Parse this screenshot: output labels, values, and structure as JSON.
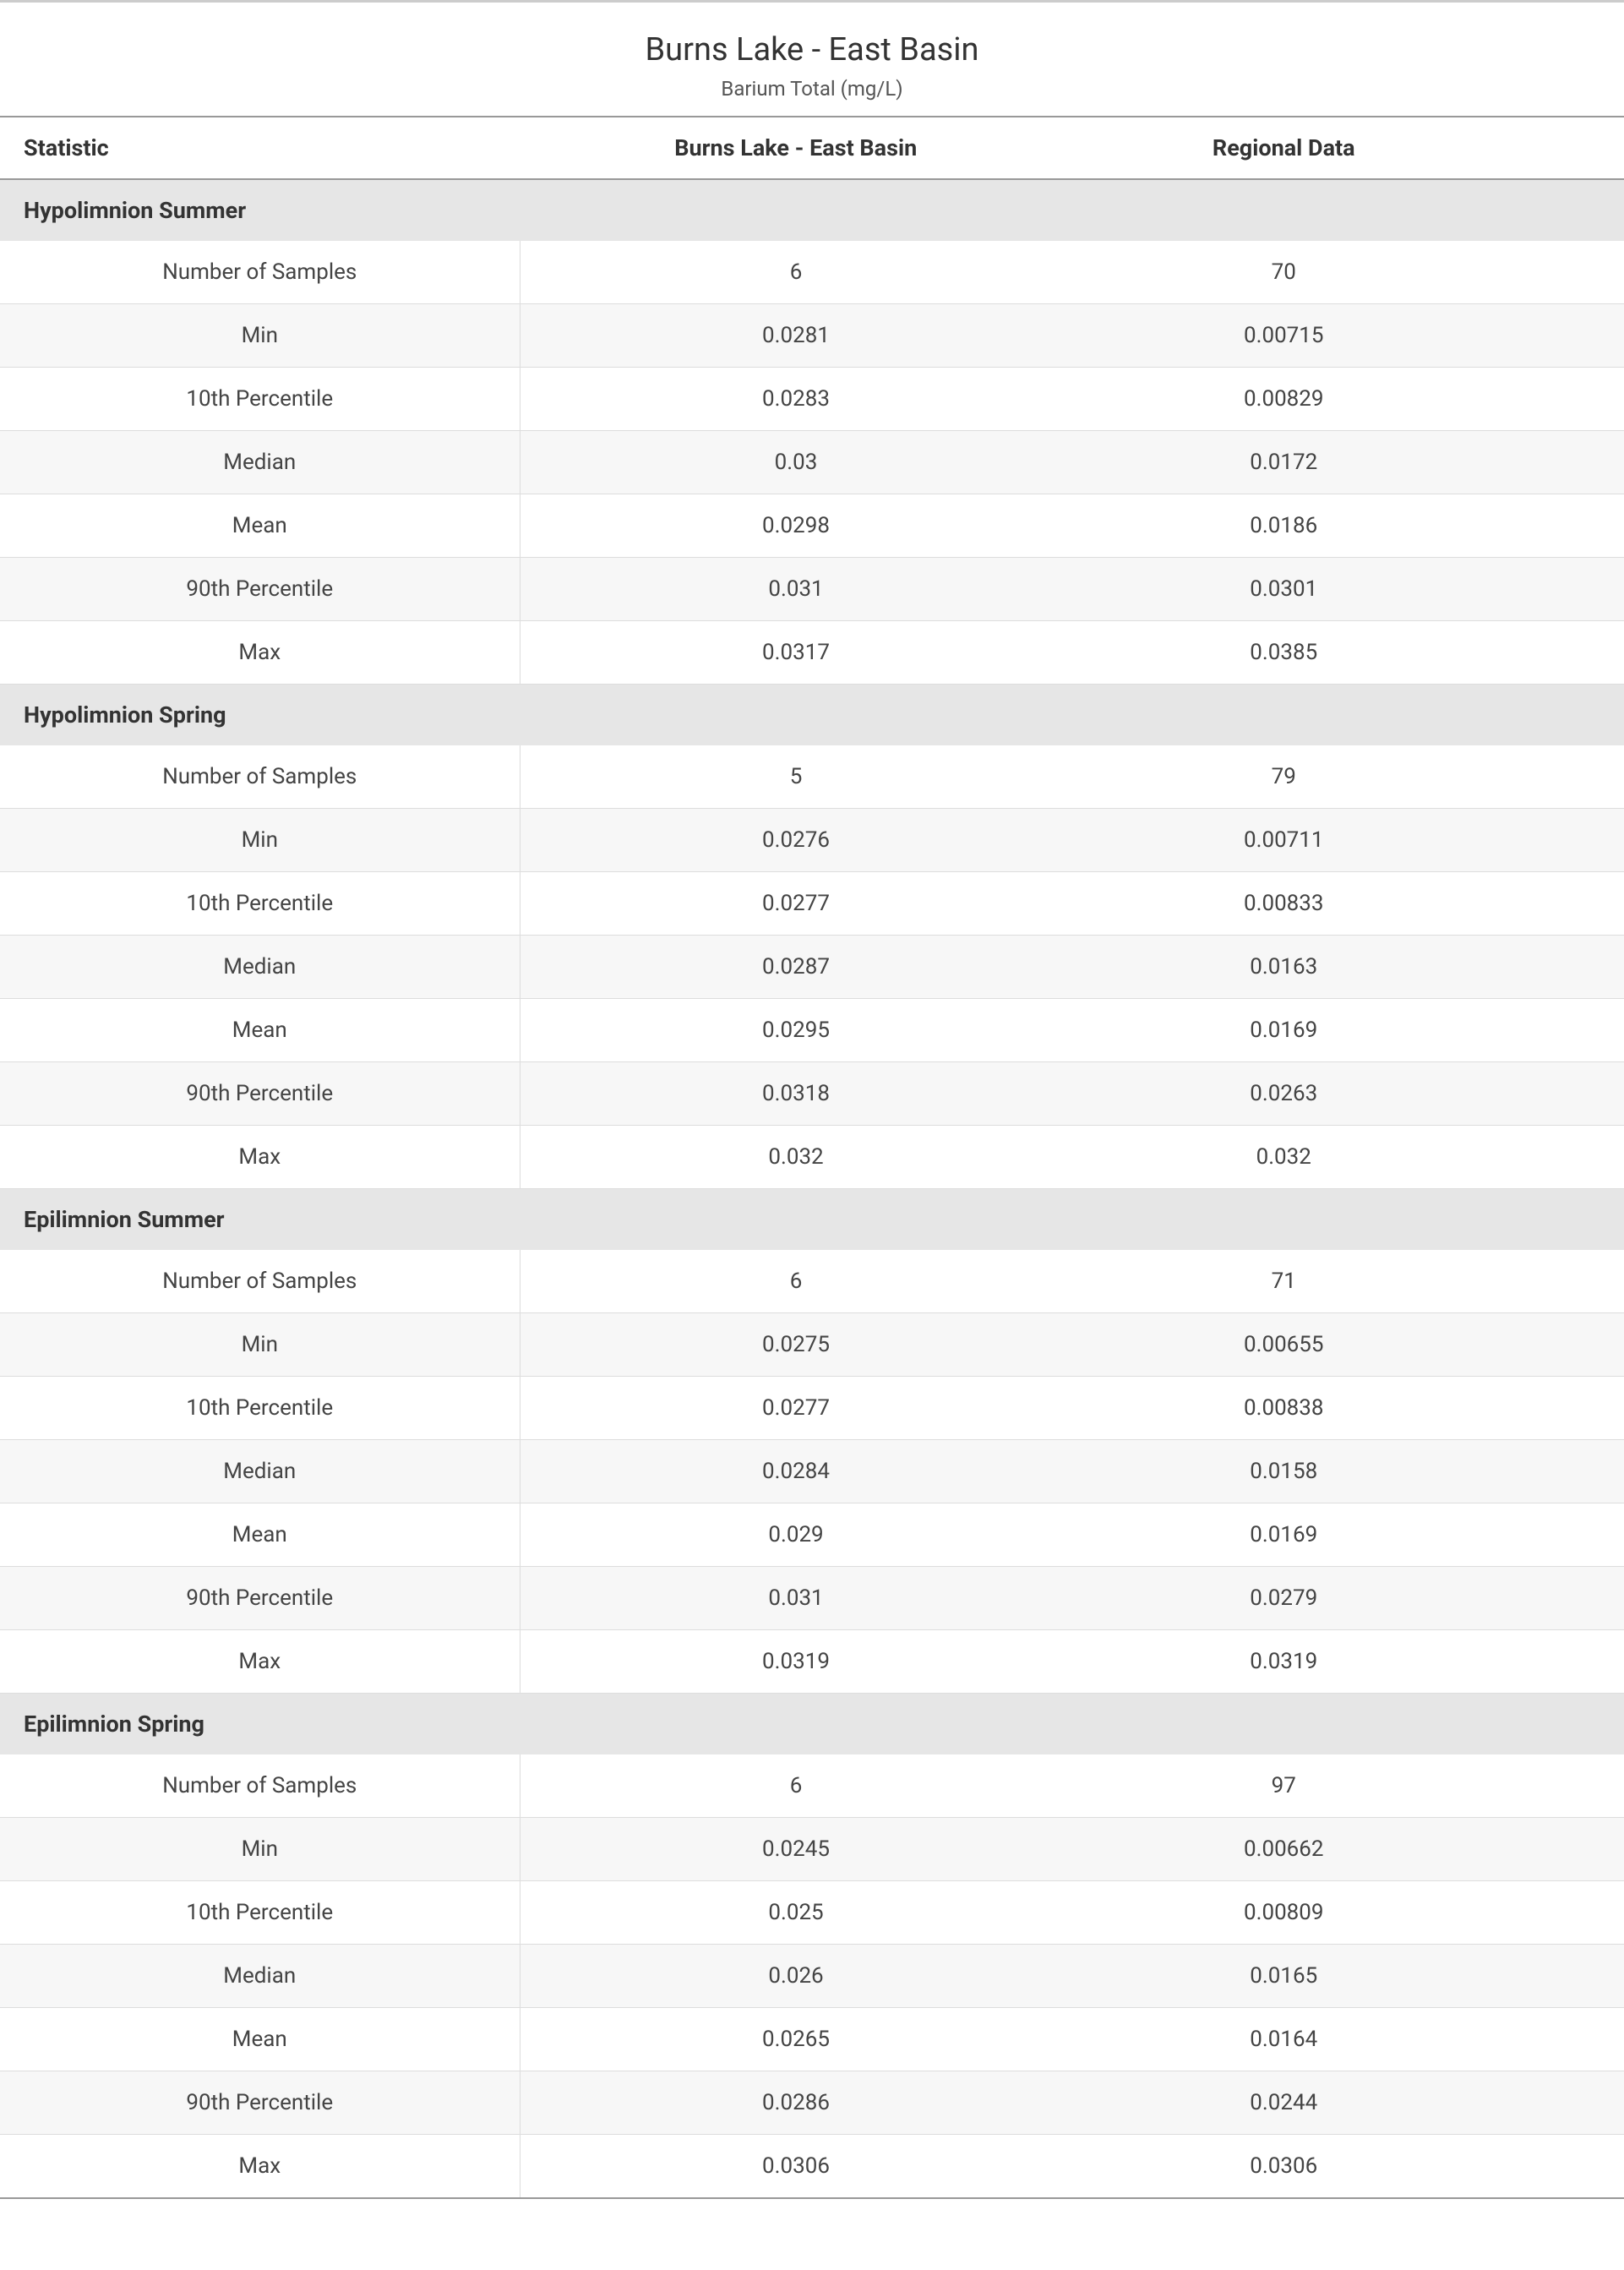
{
  "title": "Burns Lake - East Basin",
  "subtitle": "Barium Total (mg/L)",
  "columns": {
    "stat": "Statistic",
    "site": "Burns Lake - East Basin",
    "regional": "Regional Data"
  },
  "sections": [
    {
      "label": "Hypolimnion Summer",
      "rows": [
        {
          "stat": "Number of Samples",
          "site": "6",
          "regional": "70"
        },
        {
          "stat": "Min",
          "site": "0.0281",
          "regional": "0.00715"
        },
        {
          "stat": "10th Percentile",
          "site": "0.0283",
          "regional": "0.00829"
        },
        {
          "stat": "Median",
          "site": "0.03",
          "regional": "0.0172"
        },
        {
          "stat": "Mean",
          "site": "0.0298",
          "regional": "0.0186"
        },
        {
          "stat": "90th Percentile",
          "site": "0.031",
          "regional": "0.0301"
        },
        {
          "stat": "Max",
          "site": "0.0317",
          "regional": "0.0385"
        }
      ]
    },
    {
      "label": "Hypolimnion Spring",
      "rows": [
        {
          "stat": "Number of Samples",
          "site": "5",
          "regional": "79"
        },
        {
          "stat": "Min",
          "site": "0.0276",
          "regional": "0.00711"
        },
        {
          "stat": "10th Percentile",
          "site": "0.0277",
          "regional": "0.00833"
        },
        {
          "stat": "Median",
          "site": "0.0287",
          "regional": "0.0163"
        },
        {
          "stat": "Mean",
          "site": "0.0295",
          "regional": "0.0169"
        },
        {
          "stat": "90th Percentile",
          "site": "0.0318",
          "regional": "0.0263"
        },
        {
          "stat": "Max",
          "site": "0.032",
          "regional": "0.032"
        }
      ]
    },
    {
      "label": "Epilimnion Summer",
      "rows": [
        {
          "stat": "Number of Samples",
          "site": "6",
          "regional": "71"
        },
        {
          "stat": "Min",
          "site": "0.0275",
          "regional": "0.00655"
        },
        {
          "stat": "10th Percentile",
          "site": "0.0277",
          "regional": "0.00838"
        },
        {
          "stat": "Median",
          "site": "0.0284",
          "regional": "0.0158"
        },
        {
          "stat": "Mean",
          "site": "0.029",
          "regional": "0.0169"
        },
        {
          "stat": "90th Percentile",
          "site": "0.031",
          "regional": "0.0279"
        },
        {
          "stat": "Max",
          "site": "0.0319",
          "regional": "0.0319"
        }
      ]
    },
    {
      "label": "Epilimnion Spring",
      "rows": [
        {
          "stat": "Number of Samples",
          "site": "6",
          "regional": "97"
        },
        {
          "stat": "Min",
          "site": "0.0245",
          "regional": "0.00662"
        },
        {
          "stat": "10th Percentile",
          "site": "0.025",
          "regional": "0.00809"
        },
        {
          "stat": "Median",
          "site": "0.026",
          "regional": "0.0165"
        },
        {
          "stat": "Mean",
          "site": "0.0265",
          "regional": "0.0164"
        },
        {
          "stat": "90th Percentile",
          "site": "0.0286",
          "regional": "0.0244"
        },
        {
          "stat": "Max",
          "site": "0.0306",
          "regional": "0.0306"
        }
      ]
    }
  ],
  "styling": {
    "heading_border_color": "#cccccc",
    "table_border_color": "#999999",
    "row_border_color": "#dddddd",
    "section_bg": "#e6e6e6",
    "alt_row_bg": "#f7f7f7",
    "text_color": "#333333",
    "title_fontsize": 38,
    "subtitle_fontsize": 24,
    "header_fontsize": 27,
    "cell_fontsize": 26
  }
}
